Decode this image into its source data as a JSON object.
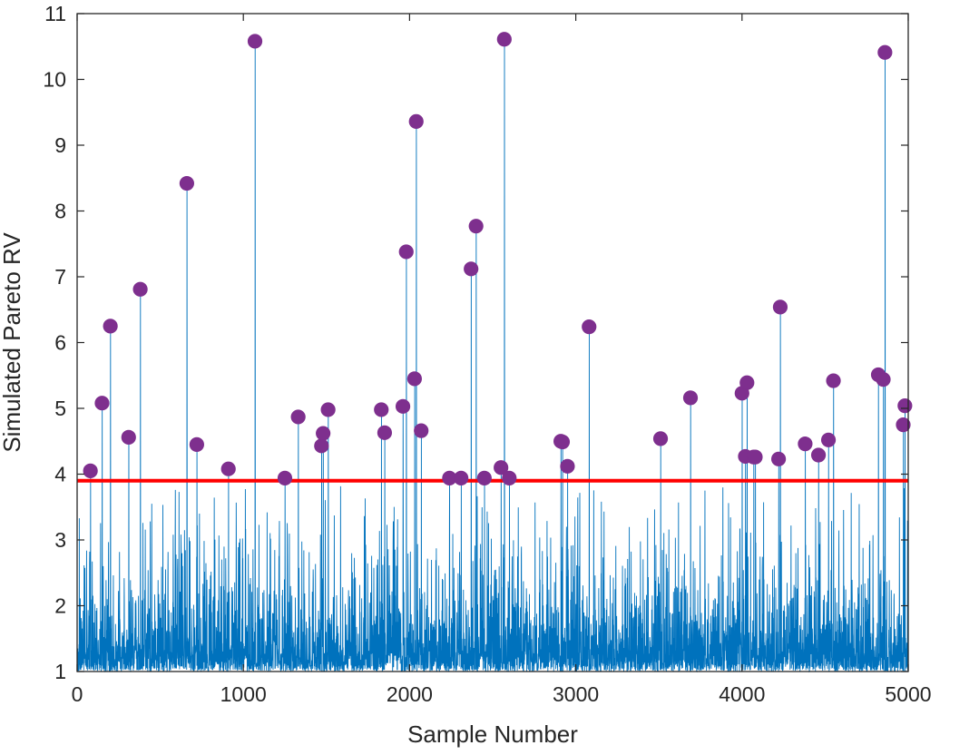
{
  "chart_data": {
    "type": "stem-scatter",
    "title": "",
    "xlabel": "Sample Number",
    "ylabel": "Simulated Pareto RV",
    "xlim": [
      0,
      5000
    ],
    "ylim": [
      1,
      11
    ],
    "xticks": [
      0,
      1000,
      2000,
      3000,
      4000,
      5000
    ],
    "yticks": [
      1,
      2,
      3,
      4,
      5,
      6,
      7,
      8,
      9,
      10,
      11
    ],
    "grid": false,
    "n_samples": 5000,
    "threshold": 3.9,
    "colors": {
      "series": "#0072BD",
      "threshold": "#FF0000",
      "markers": "#7E2F8E",
      "axes": "#262626"
    },
    "series": [
      {
        "name": "Simulated Pareto RV",
        "style": "line",
        "note": "dense background of values mostly between 1 and ~3.8 (reproduced with seeded Pareto noise)"
      },
      {
        "name": "Threshold",
        "style": "hline",
        "y": 3.9
      },
      {
        "name": "Exceedances",
        "style": "markers",
        "points": [
          [
            80,
            4.05
          ],
          [
            150,
            5.08
          ],
          [
            200,
            6.25
          ],
          [
            310,
            4.56
          ],
          [
            380,
            6.81
          ],
          [
            660,
            8.42
          ],
          [
            720,
            4.45
          ],
          [
            910,
            4.08
          ],
          [
            1070,
            10.58
          ],
          [
            1250,
            3.94
          ],
          [
            1330,
            4.87
          ],
          [
            1470,
            4.43
          ],
          [
            1480,
            4.62
          ],
          [
            1510,
            4.98
          ],
          [
            1830,
            4.98
          ],
          [
            1850,
            4.63
          ],
          [
            1960,
            5.03
          ],
          [
            1980,
            7.38
          ],
          [
            2030,
            5.45
          ],
          [
            2040,
            9.36
          ],
          [
            2070,
            4.66
          ],
          [
            2240,
            3.94
          ],
          [
            2310,
            3.94
          ],
          [
            2370,
            7.12
          ],
          [
            2400,
            7.77
          ],
          [
            2450,
            3.94
          ],
          [
            2550,
            4.1
          ],
          [
            2570,
            10.61
          ],
          [
            2600,
            3.94
          ],
          [
            2910,
            4.5
          ],
          [
            2920,
            4.49
          ],
          [
            2950,
            4.12
          ],
          [
            3080,
            6.24
          ],
          [
            3510,
            4.54
          ],
          [
            3690,
            5.16
          ],
          [
            4000,
            5.23
          ],
          [
            4020,
            4.27
          ],
          [
            4030,
            5.39
          ],
          [
            4070,
            4.26
          ],
          [
            4080,
            4.26
          ],
          [
            4220,
            4.23
          ],
          [
            4230,
            6.54
          ],
          [
            4380,
            4.46
          ],
          [
            4460,
            4.29
          ],
          [
            4520,
            4.52
          ],
          [
            4550,
            5.42
          ],
          [
            4820,
            5.51
          ],
          [
            4850,
            5.44
          ],
          [
            4860,
            10.41
          ],
          [
            4970,
            4.75
          ],
          [
            4980,
            5.04
          ]
        ]
      }
    ]
  }
}
